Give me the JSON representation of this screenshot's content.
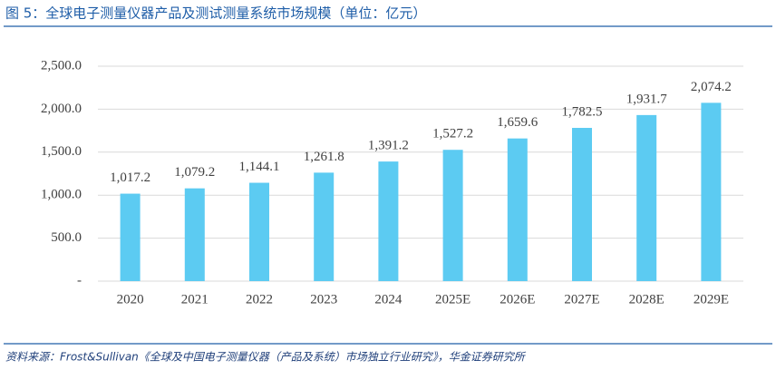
{
  "chart_data": {
    "type": "bar",
    "title": "图 5：全球电子测量仪器产品及测试测量系统市场规模（单位：亿元）",
    "source": "资料来源：Frost&Sullivan《全球及中国电子测量仪器（产品及系统）市场独立行业研究》，华金证券研究所",
    "categories": [
      "2020",
      "2021",
      "2022",
      "2023",
      "2024",
      "2025E",
      "2026E",
      "2027E",
      "2028E",
      "2029E"
    ],
    "values": [
      1017.2,
      1079.2,
      1144.1,
      1261.8,
      1391.2,
      1527.2,
      1659.6,
      1782.5,
      1931.7,
      2074.2
    ],
    "value_labels": [
      "1,017.2",
      "1,079.2",
      "1,144.1",
      "1,261.8",
      "1,391.2",
      "1,527.2",
      "1,659.6",
      "1,782.5",
      "1,931.7",
      "2,074.2"
    ],
    "color": "#5ccbf2",
    "ylim": [
      0,
      2500
    ],
    "yticks": [
      {
        "value": 0,
        "label": "-"
      },
      {
        "value": 500,
        "label": "500.0"
      },
      {
        "value": 1000,
        "label": "1,000.0"
      },
      {
        "value": 1500,
        "label": "1,500.0"
      },
      {
        "value": 2000,
        "label": "2,000.0"
      },
      {
        "value": 2500,
        "label": "2,500.0"
      }
    ],
    "grid": true
  }
}
